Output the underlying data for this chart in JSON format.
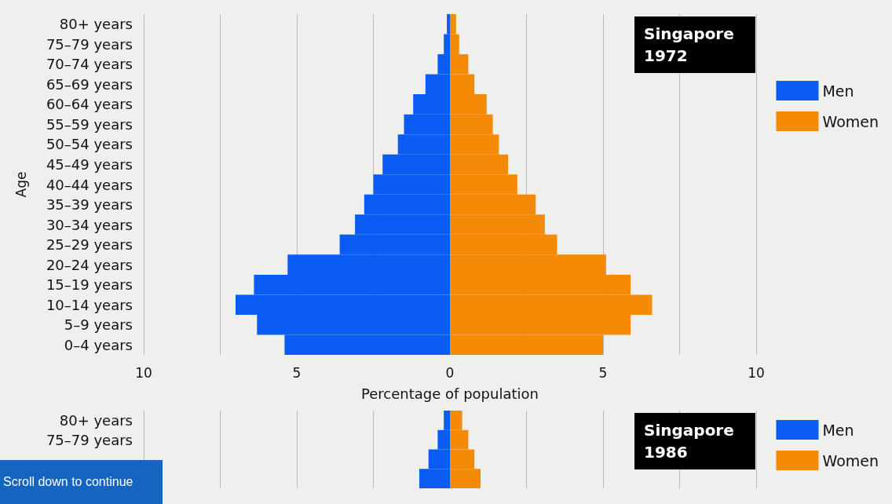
{
  "chart_data": [
    {
      "type": "bar",
      "orientation": "horizontal",
      "title": "Singapore 1972",
      "xlabel": "Percentage of population",
      "ylabel": "Age",
      "categories": [
        "80+ years",
        "75–79 years",
        "70–74 years",
        "65–69 years",
        "60–64 years",
        "55–59 years",
        "50–54 years",
        "45–49 years",
        "40–44 years",
        "35–39 years",
        "30–34 years",
        "25–29 years",
        "20–24 years",
        "15–19 years",
        "10–14 years",
        "5–9 years",
        "0–4 years"
      ],
      "series": [
        {
          "name": "Men",
          "color": "#0a5cf5",
          "values": [
            -0.1,
            -0.2,
            -0.4,
            -0.8,
            -1.2,
            -1.5,
            -1.7,
            -2.2,
            -2.5,
            -2.8,
            -3.1,
            -3.6,
            -5.3,
            -6.4,
            -7.0,
            -6.3,
            -5.4
          ]
        },
        {
          "name": "Women",
          "color": "#f58a07",
          "values": [
            0.2,
            0.3,
            0.6,
            0.8,
            1.2,
            1.4,
            1.6,
            1.9,
            2.2,
            2.8,
            3.1,
            3.5,
            5.1,
            5.9,
            6.6,
            5.9,
            5.0
          ]
        }
      ],
      "xlim": [
        -10,
        10
      ],
      "xticks": [
        {
          "value": -10,
          "label": "10"
        },
        {
          "value": -7.5,
          "label": null
        },
        {
          "value": -5,
          "label": "5"
        },
        {
          "value": -2.5,
          "label": null
        },
        0,
        {
          "value": 2.5,
          "label": null
        },
        5,
        {
          "value": 7.5,
          "label": null
        },
        10
      ],
      "grid": "x",
      "legend": "right",
      "stacked": true
    },
    {
      "type": "bar",
      "orientation": "horizontal",
      "title": "Singapore 1986",
      "categories": [
        "80+ years",
        "75–79 years",
        null,
        null
      ],
      "series": [
        {
          "name": "Men",
          "color": "#0a5cf5",
          "values": [
            -0.2,
            -0.4,
            -0.7,
            -1.0
          ]
        },
        {
          "name": "Women",
          "color": "#f58a07",
          "values": [
            0.4,
            0.6,
            0.8,
            1.0
          ]
        }
      ],
      "xlim": [
        -10,
        10
      ],
      "xticks": [
        {
          "value": -10,
          "label": "10"
        },
        {
          "value": -7.5,
          "label": null
        },
        {
          "value": -5,
          "label": "5"
        },
        {
          "value": -2.5,
          "label": null
        },
        0,
        {
          "value": 2.5,
          "label": null
        },
        5,
        {
          "value": 7.5,
          "label": null
        },
        10
      ],
      "grid": "x",
      "legend": "right",
      "tick_labels": "y",
      "stacked": true,
      "annotations": [
        "Scroll down to continue"
      ]
    }
  ]
}
